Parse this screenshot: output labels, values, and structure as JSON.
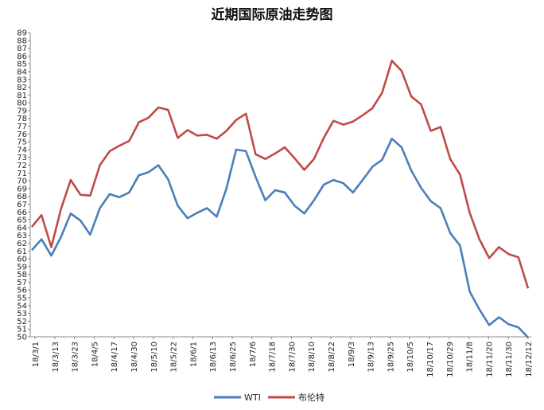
{
  "chart_data": {
    "type": "line",
    "title": "近期国际原油走势图",
    "xlabel": "",
    "ylabel": "",
    "ylim": [
      50,
      89
    ],
    "y_ticks": [
      50,
      51,
      52,
      53,
      54,
      55,
      56,
      57,
      58,
      59,
      60,
      61,
      62,
      63,
      64,
      65,
      66,
      67,
      68,
      69,
      70,
      71,
      72,
      73,
      74,
      75,
      76,
      77,
      78,
      79,
      80,
      81,
      82,
      83,
      84,
      85,
      86,
      87,
      88,
      89
    ],
    "x_tick_labels": [
      "18/3/1",
      "18/3/13",
      "18/3/23",
      "18/4/5",
      "18/4/17",
      "18/4/30",
      "18/5/10",
      "18/5/22",
      "18/6/1",
      "18/6/13",
      "18/6/25",
      "18/7/6",
      "18/7/18",
      "18/7/30",
      "18/8/10",
      "18/8/22",
      "18/9/3",
      "18/9/13",
      "18/9/25",
      "18/10/5",
      "18/10/17",
      "18/10/29",
      "18/11/8",
      "18/11/20",
      "18/11/30",
      "18/12/12"
    ],
    "grid": "none",
    "legend_position": "bottom",
    "x": [
      "18/3/1",
      "18/3/8",
      "18/3/13",
      "18/3/19",
      "18/3/23",
      "18/3/30",
      "18/4/5",
      "18/4/11",
      "18/4/17",
      "18/4/24",
      "18/4/30",
      "18/5/4",
      "18/5/10",
      "18/5/16",
      "18/5/22",
      "18/5/28",
      "18/6/1",
      "18/6/7",
      "18/6/13",
      "18/6/19",
      "18/6/25",
      "18/7/2",
      "18/7/6",
      "18/7/12",
      "18/7/18",
      "18/7/24",
      "18/7/30",
      "18/8/3",
      "18/8/10",
      "18/8/16",
      "18/8/22",
      "18/8/28",
      "18/9/3",
      "18/9/7",
      "18/9/13",
      "18/9/19",
      "18/9/25",
      "18/10/1",
      "18/10/5",
      "18/10/11",
      "18/10/17",
      "18/10/23",
      "18/10/29",
      "18/11/2",
      "18/11/8",
      "18/11/14",
      "18/11/20",
      "18/11/26",
      "18/11/30",
      "18/12/6",
      "18/12/12",
      "18/12/18"
    ],
    "series": [
      {
        "name": "WTI",
        "color": "#4a7ebb",
        "values": [
          61.1,
          62.5,
          60.4,
          62.8,
          65.8,
          64.9,
          63.1,
          66.5,
          68.3,
          67.9,
          68.5,
          70.7,
          71.1,
          72.0,
          70.2,
          66.8,
          65.2,
          65.9,
          66.5,
          65.4,
          69.0,
          74.0,
          73.8,
          70.5,
          67.5,
          68.8,
          68.5,
          66.8,
          65.8,
          67.5,
          69.5,
          70.1,
          69.7,
          68.5,
          70.1,
          71.8,
          72.7,
          75.4,
          74.3,
          71.3,
          69.1,
          67.4,
          66.5,
          63.3,
          61.7,
          55.8,
          53.5,
          51.5,
          52.5,
          51.6,
          51.2,
          49.9
        ]
      },
      {
        "name": "布伦特",
        "color": "#be4b48",
        "values": [
          64.1,
          65.6,
          61.5,
          66.4,
          70.1,
          68.2,
          68.1,
          72.0,
          73.8,
          74.5,
          75.1,
          77.5,
          78.1,
          79.4,
          79.1,
          75.5,
          76.5,
          75.8,
          75.9,
          75.4,
          76.4,
          77.8,
          78.6,
          73.4,
          72.8,
          73.5,
          74.3,
          72.9,
          71.4,
          72.8,
          75.5,
          77.7,
          77.2,
          77.6,
          78.4,
          79.3,
          81.3,
          85.4,
          84.1,
          80.8,
          79.8,
          76.4,
          76.9,
          72.8,
          70.8,
          65.9,
          62.5,
          60.1,
          61.5,
          60.6,
          60.2,
          56.2
        ]
      }
    ]
  }
}
